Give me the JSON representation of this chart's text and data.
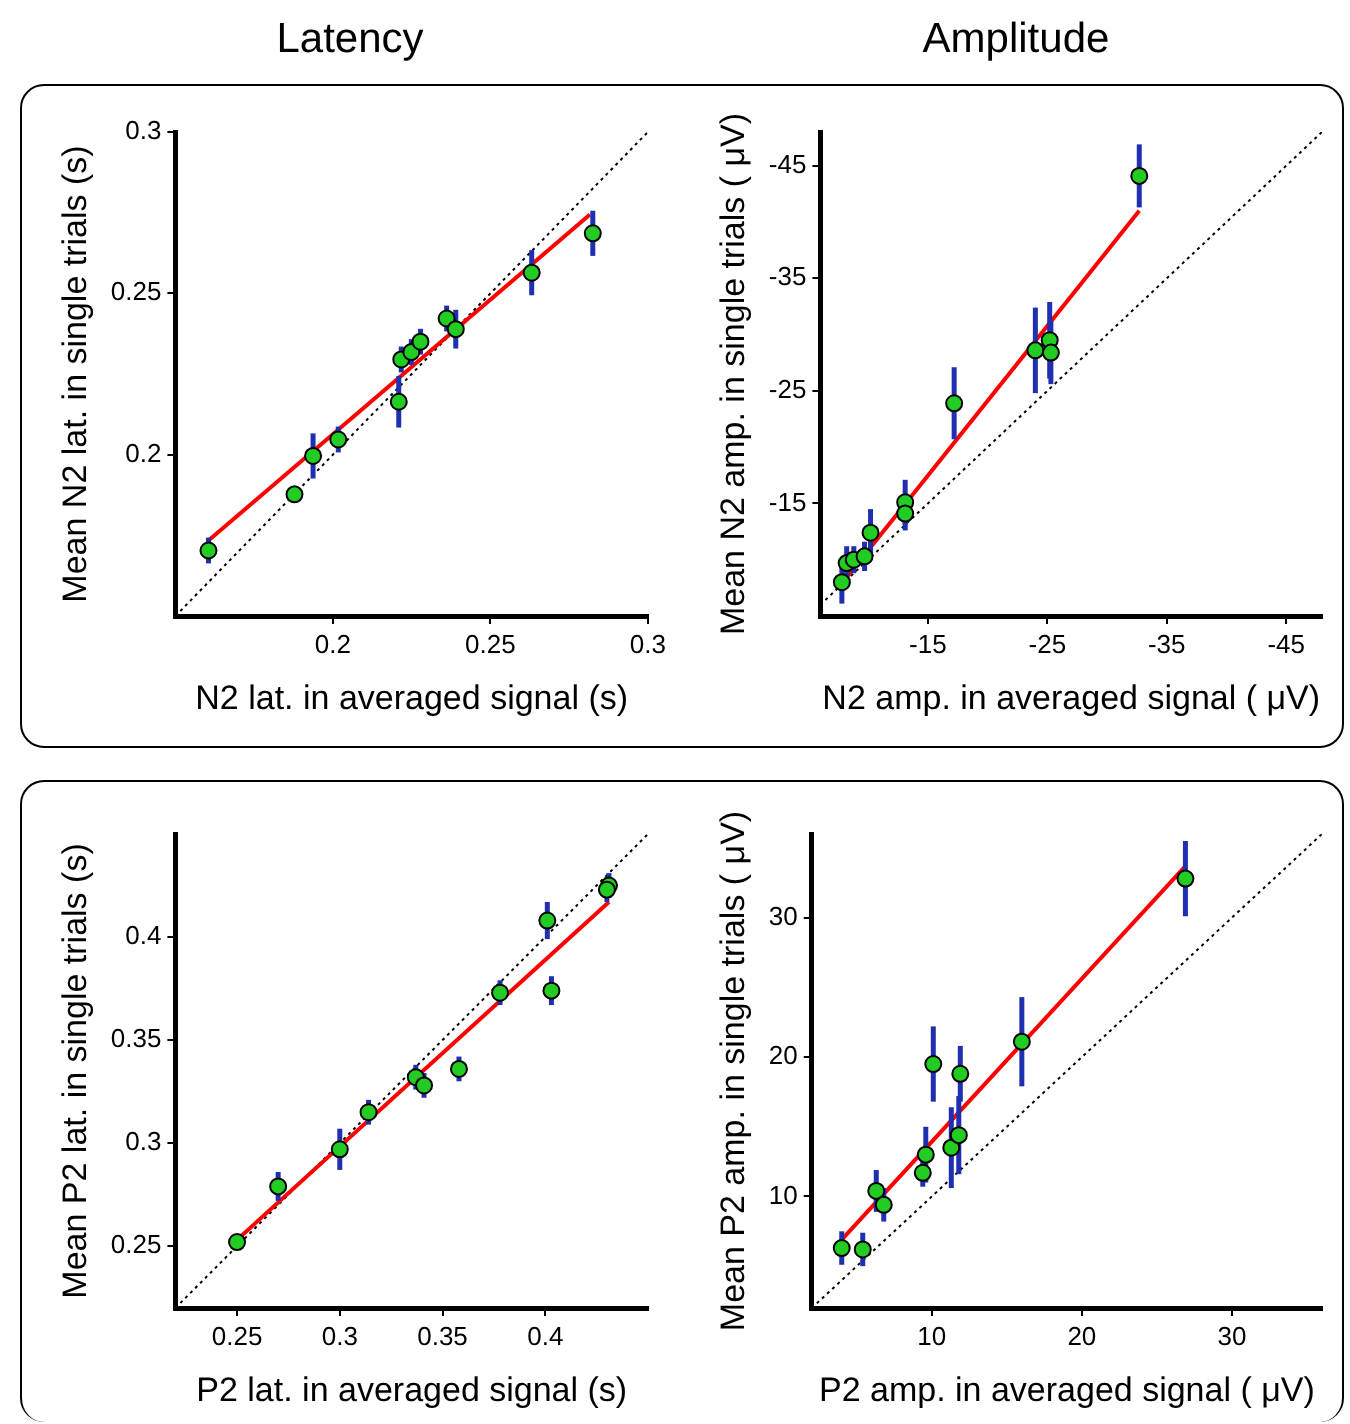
{
  "chart_data": [
    {
      "type": "scatter",
      "title": "Latency",
      "xlabel": "N2 lat. in averaged signal (s)",
      "ylabel": "Mean N2 lat. in single trials (s)",
      "xlim": [
        0.15,
        0.3
      ],
      "ylim": [
        0.15,
        0.3
      ],
      "xticks": [
        0.2,
        0.25,
        0.3
      ],
      "yticks": [
        0.2,
        0.25,
        0.3
      ],
      "grid": false,
      "legend": false,
      "marker": "circle",
      "series": [
        {
          "type": "line",
          "marker": "none",
          "color": "#000000",
          "line_style": "dotted",
          "x": [
            0.15,
            0.3
          ],
          "values": [
            0.15,
            0.3
          ]
        },
        {
          "type": "line",
          "marker": "none",
          "color": "#ff0000",
          "line_style": "solid",
          "x": [
            0.1605,
            0.2816
          ],
          "values": [
            0.1734,
            0.2744
          ]
        },
        {
          "color": "#22cc22",
          "x": [
            0.1605,
            0.1878,
            0.1937,
            0.2017,
            0.2209,
            0.2217,
            0.2249,
            0.2278,
            0.2361,
            0.239,
            0.2631,
            0.2825
          ],
          "values": [
            0.1703,
            0.1877,
            0.1996,
            0.2047,
            0.2164,
            0.2295,
            0.2318,
            0.235,
            0.2422,
            0.2389,
            0.2564,
            0.2686
          ],
          "errors": [
            0.004,
            null,
            0.007,
            0.004,
            0.008,
            0.004,
            0.004,
            0.004,
            0.004,
            0.006,
            0.007,
            0.007
          ]
        }
      ]
    },
    {
      "type": "scatter",
      "title": "Amplitude",
      "xlabel": "N2 amp. in averaged signal ( μV)",
      "ylabel": "Mean N2 amp. in single trials ( μV)",
      "xlim": [
        -6,
        -48
      ],
      "ylim": [
        -5,
        -48
      ],
      "xticks": [
        -15,
        -25,
        -35,
        -45
      ],
      "yticks": [
        -15,
        -25,
        -35,
        -45
      ],
      "grid": false,
      "legend": false,
      "marker": "circle",
      "series": [
        {
          "type": "line",
          "marker": "none",
          "color": "#000000",
          "line_style": "dotted",
          "x": [
            -6,
            -48
          ],
          "values": [
            -6,
            -48
          ]
        },
        {
          "type": "line",
          "marker": "none",
          "color": "#ff0000",
          "line_style": "solid",
          "x": [
            -8.1,
            -32.7
          ],
          "values": [
            -8.3,
            -41
          ]
        },
        {
          "color": "#22cc22",
          "x": [
            -7.8,
            -8.2,
            -8.8,
            -9.7,
            -10.2,
            -13.1,
            -13.1,
            -17.2,
            -24,
            -25.2,
            -25.3,
            -32.7
          ],
          "values": [
            -8,
            -9.7,
            -10,
            -10.3,
            -12.4,
            -15.1,
            -14.1,
            -23.9,
            -28.6,
            -29.5,
            -28.4,
            -44.1
          ],
          "errors": [
            1.9,
            1.5,
            1.2,
            1.3,
            2.1,
            2,
            1.5,
            3.2,
            3.8,
            3.4,
            2.8,
            2.8
          ]
        }
      ]
    },
    {
      "type": "scatter",
      "xlabel": "P2 lat. in averaged signal (s)",
      "ylabel": "Mean P2 lat. in single trials (s)",
      "xlim": [
        0.22,
        0.45
      ],
      "ylim": [
        0.22,
        0.45
      ],
      "xticks": [
        0.25,
        0.3,
        0.35,
        0.4
      ],
      "yticks": [
        0.25,
        0.3,
        0.35,
        0.4
      ],
      "grid": false,
      "legend": false,
      "marker": "circle",
      "series": [
        {
          "type": "line",
          "marker": "none",
          "color": "#000000",
          "line_style": "dotted",
          "x": [
            0.22,
            0.45
          ],
          "values": [
            0.22,
            0.45
          ]
        },
        {
          "type": "line",
          "marker": "none",
          "color": "#ff0000",
          "line_style": "solid",
          "x": [
            0.251,
            0.431
          ],
          "values": [
            0.254,
            0.417
          ]
        },
        {
          "color": "#22cc22",
          "x": [
            0.25,
            0.27,
            0.3,
            0.314,
            0.337,
            0.341,
            0.358,
            0.378,
            0.401,
            0.403,
            0.431,
            0.43
          ],
          "values": [
            0.252,
            0.279,
            0.297,
            0.315,
            0.332,
            0.328,
            0.336,
            0.373,
            0.408,
            0.374,
            0.425,
            0.423
          ],
          "errors": [
            null,
            0.007,
            0.01,
            0.006,
            0.006,
            0.006,
            0.006,
            0.006,
            0.009,
            0.007,
            0.006,
            0.006
          ]
        }
      ]
    },
    {
      "type": "scatter",
      "xlabel": "P2 amp. in averaged signal ( μV)",
      "ylabel": "Mean P2 amp. in single trials ( μV)",
      "xlim": [
        2,
        36
      ],
      "ylim": [
        2,
        36
      ],
      "xticks": [
        10,
        20,
        30
      ],
      "yticks": [
        10,
        20,
        30
      ],
      "grid": false,
      "legend": false,
      "marker": "circle",
      "series": [
        {
          "type": "line",
          "marker": "none",
          "color": "#000000",
          "line_style": "dotted",
          "x": [
            2,
            36
          ],
          "values": [
            2,
            36
          ]
        },
        {
          "type": "line",
          "marker": "none",
          "color": "#ff0000",
          "line_style": "solid",
          "x": [
            4,
            26.9
          ],
          "values": [
            6.9,
            33.7
          ]
        },
        {
          "color": "#22cc22",
          "x": [
            4,
            5.4,
            6.3,
            6.8,
            9.4,
            9.6,
            10.1,
            11.3,
            11.8,
            11.9,
            16,
            26.9
          ],
          "values": [
            6.3,
            6.2,
            10.4,
            9.4,
            11.7,
            13,
            19.5,
            13.5,
            14.4,
            18.8,
            21.1,
            32.8
          ],
          "errors": [
            1.2,
            1.2,
            1.5,
            1.2,
            1,
            2,
            2.7,
            2.9,
            2.8,
            2,
            3.2,
            2.7
          ]
        }
      ]
    }
  ]
}
